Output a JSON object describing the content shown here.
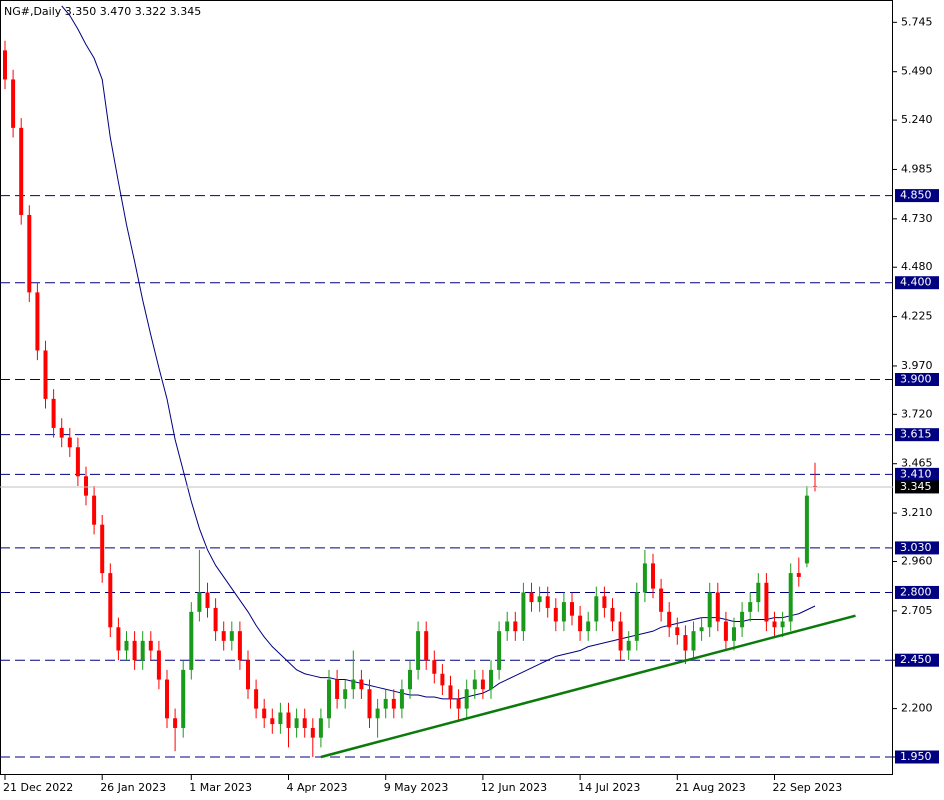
{
  "chart_data": {
    "type": "candlestick",
    "title": "NG#,Daily  3.350 3.470 3.322 3.345",
    "categories": [
      "21 Dec 2022",
      null,
      null,
      null,
      null,
      null,
      null,
      null,
      null,
      null,
      null,
      null,
      "26 Jan 2023",
      null,
      null,
      null,
      null,
      null,
      null,
      null,
      null,
      null,
      null,
      "1 Mar 2023",
      null,
      null,
      null,
      null,
      null,
      null,
      null,
      null,
      null,
      null,
      null,
      "4 Apr 2023",
      null,
      null,
      null,
      null,
      null,
      null,
      null,
      null,
      null,
      null,
      null,
      "9 May 2023",
      null,
      null,
      null,
      null,
      null,
      null,
      null,
      null,
      null,
      null,
      null,
      "12 Jun 2023",
      null,
      null,
      null,
      null,
      null,
      null,
      null,
      null,
      null,
      null,
      null,
      "14 Jul 2023",
      null,
      null,
      null,
      null,
      null,
      null,
      null,
      null,
      null,
      null,
      null,
      "21 Aug 2023",
      null,
      null,
      null,
      null,
      null,
      null,
      null,
      null,
      null,
      null,
      null,
      "22 Sep 2023",
      null,
      null,
      null,
      null,
      null
    ],
    "open": [
      5.6,
      5.45,
      5.2,
      4.75,
      4.35,
      4.05,
      3.8,
      3.65,
      3.6,
      3.55,
      3.4,
      3.3,
      3.15,
      2.9,
      2.62,
      2.5,
      2.55,
      2.45,
      2.55,
      2.5,
      2.35,
      2.15,
      2.1,
      2.4,
      2.7,
      2.8,
      2.72,
      2.6,
      2.55,
      2.6,
      2.45,
      2.3,
      2.2,
      2.15,
      2.12,
      2.18,
      2.1,
      2.15,
      2.1,
      2.05,
      2.15,
      2.35,
      2.25,
      2.3,
      2.35,
      2.3,
      2.15,
      2.2,
      2.25,
      2.2,
      2.3,
      2.4,
      2.6,
      2.45,
      2.38,
      2.32,
      2.25,
      2.2,
      2.3,
      2.35,
      2.3,
      2.4,
      2.6,
      2.65,
      2.6,
      2.8,
      2.75,
      2.78,
      2.72,
      2.65,
      2.75,
      2.68,
      2.6,
      2.65,
      2.78,
      2.72,
      2.65,
      2.5,
      2.55,
      2.8,
      2.95,
      2.82,
      2.7,
      2.62,
      2.58,
      2.5,
      2.6,
      2.62,
      2.8,
      2.65,
      2.55,
      2.62,
      2.7,
      2.75,
      2.85,
      2.65,
      2.62,
      2.65,
      2.9,
      2.95,
      3.35
    ],
    "high": [
      5.65,
      5.5,
      5.25,
      4.8,
      4.4,
      4.1,
      3.85,
      3.7,
      3.65,
      3.6,
      3.45,
      3.35,
      3.2,
      2.95,
      2.67,
      2.6,
      2.6,
      2.6,
      2.6,
      2.55,
      2.4,
      2.2,
      2.45,
      2.75,
      3.02,
      2.85,
      2.77,
      2.65,
      2.65,
      2.65,
      2.5,
      2.35,
      2.25,
      2.2,
      2.23,
      2.23,
      2.2,
      2.2,
      2.15,
      2.2,
      2.4,
      2.4,
      2.35,
      2.5,
      2.4,
      2.35,
      2.25,
      2.3,
      2.3,
      2.35,
      2.45,
      2.65,
      2.65,
      2.5,
      2.43,
      2.37,
      2.3,
      2.35,
      2.4,
      2.4,
      2.45,
      2.65,
      2.7,
      2.7,
      2.85,
      2.85,
      2.83,
      2.83,
      2.77,
      2.8,
      2.8,
      2.73,
      2.7,
      2.83,
      2.83,
      2.77,
      2.7,
      2.6,
      2.85,
      3.02,
      3.0,
      2.87,
      2.75,
      2.67,
      2.63,
      2.65,
      2.67,
      2.85,
      2.85,
      2.7,
      2.67,
      2.75,
      2.8,
      2.9,
      2.9,
      2.7,
      2.7,
      2.95,
      2.98,
      3.35,
      3.47
    ],
    "low": [
      5.4,
      5.15,
      4.7,
      4.3,
      4.0,
      3.75,
      3.6,
      3.55,
      3.5,
      3.35,
      3.25,
      3.1,
      2.85,
      2.57,
      2.45,
      2.45,
      2.4,
      2.4,
      2.45,
      2.3,
      2.1,
      1.98,
      2.05,
      2.35,
      2.65,
      2.67,
      2.55,
      2.5,
      2.5,
      2.4,
      2.25,
      2.15,
      2.1,
      2.07,
      2.07,
      2.0,
      2.05,
      2.05,
      1.95,
      2.0,
      2.1,
      2.2,
      2.2,
      2.25,
      2.25,
      2.1,
      2.05,
      2.15,
      2.15,
      2.15,
      2.25,
      2.35,
      2.4,
      2.33,
      2.27,
      2.2,
      2.13,
      2.15,
      2.25,
      2.25,
      2.25,
      2.35,
      2.55,
      2.55,
      2.55,
      2.7,
      2.7,
      2.67,
      2.6,
      2.6,
      2.63,
      2.55,
      2.55,
      2.6,
      2.67,
      2.6,
      2.45,
      2.45,
      2.5,
      2.75,
      2.77,
      2.65,
      2.57,
      2.53,
      2.43,
      2.45,
      2.55,
      2.57,
      2.6,
      2.5,
      2.5,
      2.57,
      2.65,
      2.7,
      2.6,
      2.57,
      2.57,
      2.6,
      2.83,
      2.93,
      3.322
    ],
    "close": [
      5.45,
      5.2,
      4.75,
      4.35,
      4.05,
      3.8,
      3.65,
      3.6,
      3.55,
      3.4,
      3.3,
      3.15,
      2.9,
      2.62,
      2.5,
      2.55,
      2.45,
      2.55,
      2.5,
      2.35,
      2.15,
      2.1,
      2.4,
      2.7,
      2.8,
      2.72,
      2.6,
      2.55,
      2.6,
      2.45,
      2.3,
      2.2,
      2.15,
      2.12,
      2.18,
      2.1,
      2.15,
      2.1,
      2.05,
      2.15,
      2.35,
      2.25,
      2.3,
      2.35,
      2.3,
      2.15,
      2.2,
      2.25,
      2.2,
      2.3,
      2.4,
      2.6,
      2.45,
      2.38,
      2.32,
      2.25,
      2.2,
      2.3,
      2.35,
      2.3,
      2.4,
      2.6,
      2.65,
      2.6,
      2.8,
      2.75,
      2.78,
      2.72,
      2.65,
      2.75,
      2.68,
      2.6,
      2.65,
      2.78,
      2.72,
      2.65,
      2.5,
      2.55,
      2.8,
      2.95,
      2.82,
      2.7,
      2.62,
      2.58,
      2.5,
      2.6,
      2.62,
      2.8,
      2.65,
      2.55,
      2.62,
      2.7,
      2.75,
      2.85,
      2.65,
      2.62,
      2.65,
      2.9,
      2.88,
      3.3,
      3.345
    ],
    "up_color": "#1a9a1a",
    "down_color": "#ff0000",
    "ma": {
      "color": "#000080",
      "values": [
        null,
        null,
        null,
        null,
        null,
        null,
        null,
        5.83,
        5.78,
        5.71,
        5.63,
        5.56,
        5.45,
        5.15,
        4.92,
        4.7,
        4.51,
        4.31,
        4.13,
        3.96,
        3.8,
        3.59,
        3.43,
        3.27,
        3.13,
        3.02,
        2.94,
        2.88,
        2.82,
        2.76,
        2.7,
        2.63,
        2.57,
        2.52,
        2.48,
        2.44,
        2.4,
        2.38,
        2.37,
        2.36,
        2.36,
        2.35,
        2.35,
        2.34,
        2.33,
        2.32,
        2.31,
        2.3,
        2.29,
        2.28,
        2.27,
        2.27,
        2.26,
        2.26,
        2.25,
        2.25,
        2.25,
        2.26,
        2.27,
        2.28,
        2.3,
        2.33,
        2.35,
        2.37,
        2.39,
        2.41,
        2.43,
        2.45,
        2.47,
        2.48,
        2.49,
        2.5,
        2.52,
        2.53,
        2.54,
        2.55,
        2.56,
        2.57,
        2.58,
        2.59,
        2.6,
        2.62,
        2.63,
        2.64,
        2.65,
        2.66,
        2.67,
        2.67,
        2.67,
        2.66,
        2.65,
        2.65,
        2.66,
        2.66,
        2.66,
        2.67,
        2.67,
        2.68,
        2.69,
        2.71,
        2.73
      ]
    },
    "trendline": {
      "color": "#0a7a0a",
      "x": [
        39,
        105
      ],
      "y": [
        1.95,
        2.68
      ]
    },
    "levels": [
      {
        "value": 4.85,
        "label": "4.850"
      },
      {
        "value": 4.4,
        "label": "4.400"
      },
      {
        "value": 3.9,
        "label": "3.900"
      },
      {
        "value": 3.615,
        "label": "3.615"
      },
      {
        "value": 3.41,
        "label": "3.410"
      },
      {
        "value": 3.03,
        "label": "3.030"
      },
      {
        "value": 2.8,
        "label": "2.800"
      },
      {
        "value": 2.45,
        "label": "2.450"
      },
      {
        "value": 1.95,
        "label": "1.950"
      }
    ],
    "level_color": "#000080",
    "ylim": [
      1.857,
      5.85
    ],
    "yticks": [
      5.745,
      {
        "value": 5.49,
        "label": "5.490"
      },
      {
        "value": 5.24,
        "label": "5.240"
      },
      4.985,
      {
        "value": 4.73,
        "label": "4.730"
      },
      {
        "value": 4.48,
        "label": "4.480"
      },
      4.225,
      {
        "value": 3.97,
        "label": "3.970"
      },
      {
        "value": 3.72,
        "label": "3.720"
      },
      3.465,
      {
        "value": 3.21,
        "label": "3.210"
      },
      {
        "value": 2.96,
        "label": "2.960"
      },
      2.705,
      {
        "value": 2.45,
        "label": "2.450"
      },
      {
        "value": 2.2,
        "label": "2.200"
      },
      {
        "value": 1.95,
        "label": "1.950"
      }
    ],
    "grid": false
  }
}
